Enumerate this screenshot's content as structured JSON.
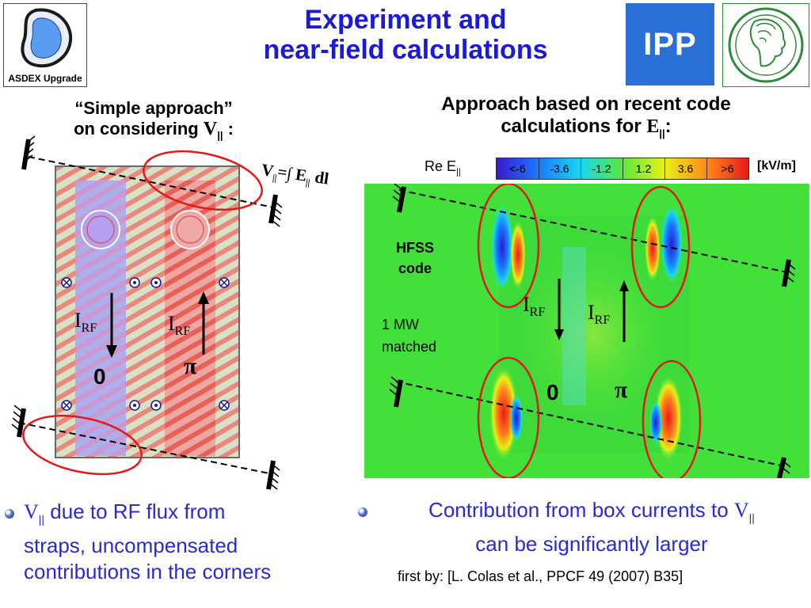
{
  "title": {
    "line1": "Experiment and",
    "line2": "near-field calculations"
  },
  "logos": {
    "asdex": "ASDEX Upgrade",
    "ipp": "IPP"
  },
  "left": {
    "heading_line1": "“Simple approach”",
    "heading_line2_prefix": "on considering ",
    "heading_symbol": "V",
    "heading_sub": "||",
    "heading_suffix": " :",
    "formula_v": "V",
    "formula_sub": "||",
    "formula_mid": "=∫ E",
    "formula_sub2": "||",
    "formula_end": " dl",
    "irf_left": "I",
    "irf_left_sub": "RF",
    "irf_right": "I",
    "irf_right_sub": "RF",
    "phase_left": "0",
    "phase_right": "π",
    "bullet_symbol": "V",
    "bullet_sub": "||",
    "bullet_line1": " due to RF flux from",
    "bullet_line2": "straps, uncompensated",
    "bullet_line3": "contributions in the corners"
  },
  "right": {
    "heading_line1": "Approach based on recent code",
    "heading_line2_prefix": "calculations for ",
    "heading_symbol": "E",
    "heading_sub": "||",
    "heading_suffix": ":",
    "legend_label": "Re E",
    "legend_sub": "||",
    "legend_unit": "[kV/m]",
    "legend_ticks": [
      "<-6",
      "-3.6",
      "-1.2",
      "1.2",
      "3.6",
      ">6"
    ],
    "legend_colors": [
      "#3a1ad0",
      "#1a7aff",
      "#1ad6f0",
      "#5ae83a",
      "#e8f01a",
      "#ff8a1a",
      "#e81a1a"
    ],
    "hfss_line1": "HFSS",
    "hfss_line2": "code",
    "power_line1": "1 MW",
    "power_line2": "matched",
    "irf_left": "I",
    "irf_left_sub": "RF",
    "irf_right": "I",
    "irf_right_sub": "RF",
    "phase_left": "0",
    "phase_right": "π",
    "bullet_line1": "Contribution from box currents to ",
    "bullet_symbol": "V",
    "bullet_sub": "||",
    "bullet_line2": "can be significantly larger",
    "citation": "first by: [L. Colas et al., PPCF 49 (2007) B35]"
  }
}
